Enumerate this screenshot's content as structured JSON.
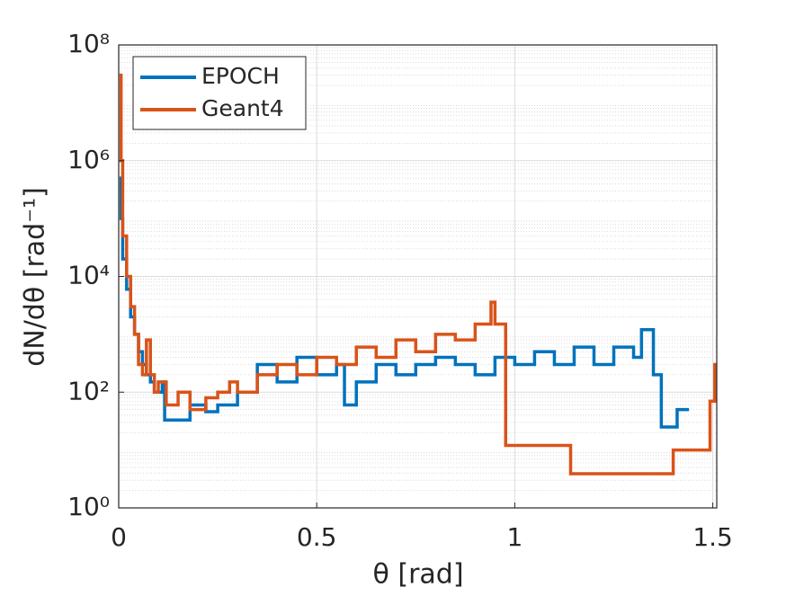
{
  "chart_data": {
    "type": "step",
    "x_label": "θ [rad]",
    "y_label": "dN/dθ [rad⁻¹]",
    "xlim": [
      0,
      1.51
    ],
    "xticks": [
      0,
      0.5,
      1,
      1.5
    ],
    "ylim": [
      1,
      100000000
    ],
    "yticks": [
      {
        "value": 1,
        "label": "10⁰"
      },
      {
        "value": 100,
        "label": "10²"
      },
      {
        "value": 10000,
        "label": "10⁴"
      },
      {
        "value": 1000000,
        "label": "10⁶"
      },
      {
        "value": 100000000,
        "label": "10⁸"
      }
    ],
    "log_y": true,
    "grid": true,
    "minor_grid": true,
    "legend": "upper-left",
    "series": [
      {
        "name": "EPOCH",
        "color": "#0072BD",
        "x": [
          0.002,
          0.006,
          0.01,
          0.02,
          0.03,
          0.04,
          0.05,
          0.06,
          0.07,
          0.08,
          0.09,
          0.11,
          0.116,
          0.18,
          0.22,
          0.25,
          0.3,
          0.35,
          0.4,
          0.45,
          0.5,
          0.55,
          0.57,
          0.6,
          0.65,
          0.7,
          0.75,
          0.8,
          0.85,
          0.9,
          0.95,
          1.0,
          1.05,
          1.1,
          1.15,
          1.2,
          1.25,
          1.3,
          1.32,
          1.35,
          1.37,
          1.41,
          1.44
        ],
        "values": [
          500000,
          100000,
          20000,
          6000,
          2000,
          1000,
          500,
          300,
          200,
          150,
          100,
          150,
          33,
          60,
          46,
          60,
          100,
          300,
          150,
          400,
          200,
          300,
          60,
          150,
          300,
          200,
          300,
          400,
          300,
          200,
          400,
          300,
          500,
          300,
          600,
          300,
          600,
          400,
          1200,
          200,
          25,
          50,
          50
        ]
      },
      {
        "name": "Geant4",
        "color": "#D95319",
        "x": [
          0.002,
          0.006,
          0.01,
          0.02,
          0.03,
          0.04,
          0.05,
          0.06,
          0.07,
          0.08,
          0.09,
          0.1,
          0.12,
          0.15,
          0.18,
          0.22,
          0.25,
          0.28,
          0.3,
          0.35,
          0.4,
          0.45,
          0.5,
          0.55,
          0.6,
          0.65,
          0.7,
          0.75,
          0.8,
          0.85,
          0.9,
          0.94,
          0.95,
          0.977,
          1.141,
          1.4,
          1.493,
          1.505,
          1.51
        ],
        "values": [
          30000000,
          1000000,
          50000,
          10000,
          3000,
          1000,
          300,
          200,
          800,
          200,
          100,
          150,
          60,
          100,
          50,
          80,
          100,
          150,
          100,
          200,
          300,
          200,
          400,
          300,
          600,
          400,
          800,
          500,
          1000,
          800,
          1500,
          3600,
          1500,
          12,
          3.9,
          10,
          70,
          300,
          300
        ]
      }
    ]
  }
}
